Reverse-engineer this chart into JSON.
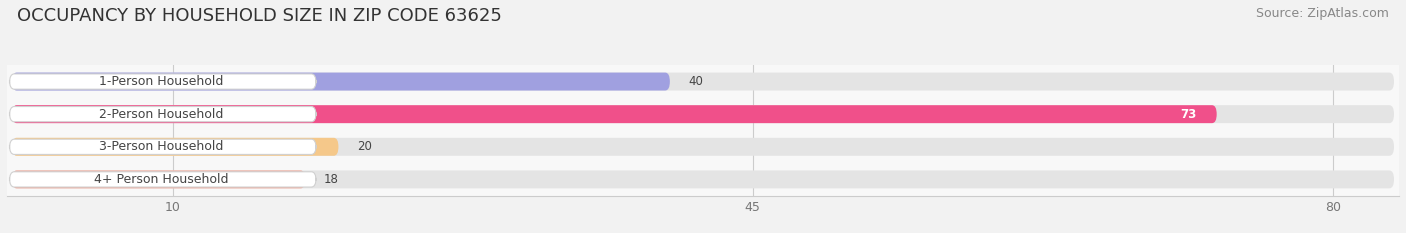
{
  "title": "OCCUPANCY BY HOUSEHOLD SIZE IN ZIP CODE 63625",
  "source": "Source: ZipAtlas.com",
  "categories": [
    "1-Person Household",
    "2-Person Household",
    "3-Person Household",
    "4+ Person Household"
  ],
  "values": [
    40,
    73,
    20,
    18
  ],
  "bar_colors": [
    "#a0a0e0",
    "#f0508a",
    "#f5c88a",
    "#f0a898"
  ],
  "background_color": "#f2f2f2",
  "bar_background_color": "#e4e4e4",
  "row_background_color": "#f8f8f8",
  "xlim": [
    0,
    84
  ],
  "xticks": [
    10,
    45,
    80
  ],
  "label_bg_color": "#ffffff",
  "title_fontsize": 13,
  "source_fontsize": 9,
  "bar_height": 0.55,
  "value_inside_threshold": 70
}
